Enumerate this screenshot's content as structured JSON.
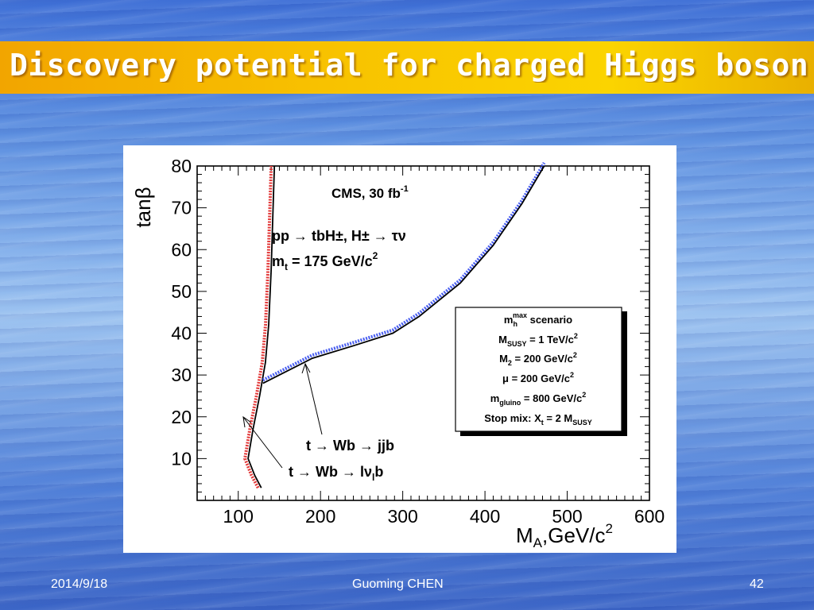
{
  "slide": {
    "title": "Discovery potential for charged Higgs bosons",
    "footer_date": "2014/9/18",
    "footer_author": "Guoming CHEN",
    "footer_page": "42"
  },
  "chart_data": {
    "type": "line",
    "xlabel": "M",
    "xlabel_sub": "A",
    "xlabel_unit": ",GeV/c",
    "xlabel_sup": "2",
    "ylabel": "tanβ",
    "xlim": [
      50,
      600
    ],
    "ylim": [
      0,
      80
    ],
    "x_ticks": [
      "100",
      "200",
      "300",
      "400",
      "500",
      "600"
    ],
    "y_ticks": [
      "10",
      "20",
      "30",
      "40",
      "50",
      "60",
      "70",
      "80"
    ],
    "annotations": {
      "cms_label": "CMS, 30 fb",
      "cms_sup": "-1",
      "process_line": "pp → tbH±, H± → τν",
      "mt_label": "m",
      "mt_sub": "t",
      "mt_value": " = 175 GeV/c",
      "mt_sup": "2",
      "label_jjb": "t → Wb → jjb",
      "label_lnub_prefix": "t → Wb → lν",
      "label_lnub_sub": "l",
      "label_lnub_suffix": "b"
    },
    "scenario_box": {
      "l1_a": "m",
      "l1_sub": "h",
      "l1_sup": "max",
      "l1_b": " scenario",
      "l2_a": "M",
      "l2_sub": "SUSY",
      "l2_b": " = 1 TeV/c",
      "l2_sup": "2",
      "l3_a": "M",
      "l3_sub": "2",
      "l3_b": " = 200 GeV/c",
      "l3_sup": "2",
      "l4_a": "μ = 200 GeV/c",
      "l4_sup": "2",
      "l5_a": "m",
      "l5_sub": "gluino",
      "l5_b": " = 800 GeV/c",
      "l5_sup": "2",
      "l6_a": "Stop mix: X",
      "l6_sub": "t",
      "l6_b": " = 2 M",
      "l6_sub2": "SUSY"
    },
    "series": [
      {
        "color": "#000000",
        "hatch_color": "#e23a3a",
        "points": [
          [
            128,
            3
          ],
          [
            120,
            6
          ],
          [
            112,
            10
          ],
          [
            118,
            17
          ],
          [
            126,
            25
          ],
          [
            133,
            33
          ],
          [
            137,
            42
          ],
          [
            140,
            55
          ],
          [
            142,
            68
          ],
          [
            144,
            80
          ]
        ]
      },
      {
        "color": "#000000",
        "hatch_color": "#4a5ff0",
        "points": [
          [
            130,
            28
          ],
          [
            150,
            30
          ],
          [
            190,
            34
          ],
          [
            240,
            37
          ],
          [
            288,
            40
          ],
          [
            320,
            44
          ],
          [
            370,
            52
          ],
          [
            410,
            61
          ],
          [
            445,
            71
          ],
          [
            472,
            80
          ]
        ]
      }
    ]
  }
}
